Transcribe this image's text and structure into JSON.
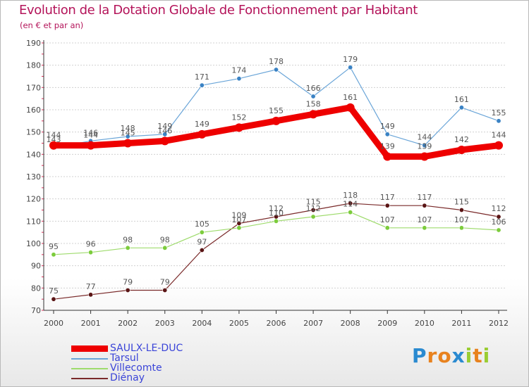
{
  "title": "Evolution de la Dotation Globale de Fonctionnement par Habitant",
  "subtitle": "(en € et par an)",
  "logo_text": "Proxiti",
  "colors": {
    "title": "#b4145a",
    "axis": "#333333",
    "grid": "#d0d0d0",
    "tick_minor": "#e0305a",
    "label": "#444444"
  },
  "chart_data": {
    "type": "line",
    "title": "Evolution de la Dotation Globale de Fonctionnement par Habitant",
    "subtitle": "(en € et par an)",
    "xlabel": "",
    "ylabel": "",
    "ylim": [
      70,
      190
    ],
    "yticks": [
      70,
      80,
      90,
      100,
      110,
      120,
      130,
      140,
      150,
      160,
      170,
      180,
      190
    ],
    "grid": true,
    "legend_position": "bottom-left",
    "categories": [
      "2000",
      "2001",
      "2002",
      "2003",
      "2004",
      "2005",
      "2006",
      "2007",
      "2008",
      "2009",
      "2010",
      "2011",
      "2012"
    ],
    "series": [
      {
        "name": "SAULX-LE-DUC",
        "color": "#ee0000",
        "marker_color": "#ee0000",
        "width": 9,
        "label_color": "#555555",
        "values": [
          144,
          144,
          145,
          146,
          149,
          152,
          155,
          158,
          161,
          139,
          139,
          142,
          144
        ]
      },
      {
        "name": "Tarsul",
        "color": "#6aa5d8",
        "marker_color": "#3a82c4",
        "width": 1.2,
        "label_color": "#555555",
        "values": [
          143,
          146,
          148,
          149,
          171,
          174,
          178,
          166,
          179,
          149,
          144,
          161,
          155
        ]
      },
      {
        "name": "Villecomte",
        "color": "#9edb6c",
        "marker_color": "#7ccc3c",
        "width": 1.2,
        "label_color": "#555555",
        "values": [
          95,
          96,
          98,
          98,
          105,
          107,
          110,
          112,
          114,
          107,
          107,
          107,
          106
        ]
      },
      {
        "name": "Diénay",
        "color": "#7a2a2a",
        "marker_color": "#5a1515",
        "width": 1.2,
        "label_color": "#555555",
        "values": [
          75,
          77,
          79,
          79,
          97,
          109,
          112,
          115,
          118,
          117,
          117,
          115,
          112
        ]
      }
    ]
  }
}
